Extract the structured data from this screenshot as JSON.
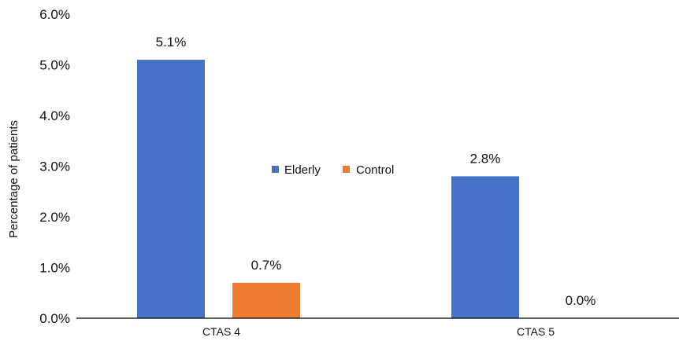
{
  "chart_data": {
    "type": "bar",
    "ylabel": "Percentage of patients",
    "categories": [
      "CTAS 4",
      "CTAS 5"
    ],
    "series": [
      {
        "name": "Elderly",
        "values": [
          5.1,
          2.8
        ],
        "labels": [
          "5.1%",
          "2.8%"
        ],
        "color": "#4472C4"
      },
      {
        "name": "Control",
        "values": [
          0.7,
          0.0
        ],
        "labels": [
          "0.7%",
          "0.0%"
        ],
        "color": "#ED7D31"
      }
    ],
    "ylim": [
      0,
      6
    ],
    "yticks": [
      0,
      1,
      2,
      3,
      4,
      5,
      6
    ],
    "ytick_labels": [
      "0.0%",
      "1.0%",
      "2.0%",
      "3.0%",
      "4.0%",
      "5.0%",
      "6.0%"
    ],
    "grid": false,
    "legend_position": "center"
  }
}
